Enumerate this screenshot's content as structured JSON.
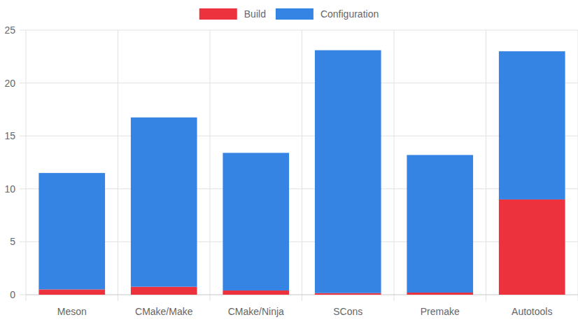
{
  "chart_data": {
    "type": "bar",
    "stacked": true,
    "grid": true,
    "legend": "top",
    "categories": [
      "Meson",
      "CMake/Make",
      "CMake/Ninja",
      "SCons",
      "Premake",
      "Autotools"
    ],
    "series": [
      {
        "name": "Build",
        "color": "#ec333d",
        "values": [
          0.5,
          0.75,
          0.4,
          0.15,
          0.2,
          9.0
        ]
      },
      {
        "name": "Configuration",
        "color": "#3584e4",
        "values": [
          11.0,
          16.0,
          13.0,
          22.95,
          13.0,
          14.0
        ]
      }
    ],
    "ylim": [
      0,
      25
    ],
    "yticks": [
      0,
      5,
      10,
      15,
      20,
      25
    ]
  }
}
